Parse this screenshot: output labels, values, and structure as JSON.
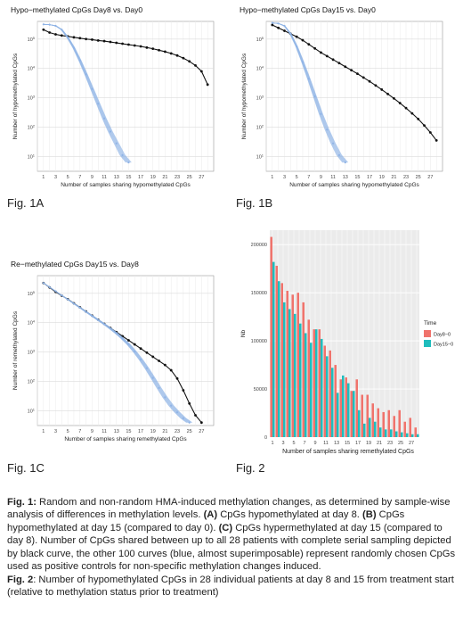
{
  "colors": {
    "black_curve": "#111111",
    "blue_curves": "#8fb3e6",
    "bar_day8": "#f0736c",
    "bar_day15": "#1fbdbd",
    "grid": "#ebebeb",
    "panel_border": "#999999"
  },
  "figure_labels": {
    "fig1a": "Fig. 1A",
    "fig1b": "Fig. 1B",
    "fig1c": "Fig. 1C",
    "fig2": "Fig. 2"
  },
  "caption1": {
    "label": "Fig. 1:",
    "text1": " Random and non-random HMA-induced methylation changes, as determined by sample-wise analysis of differences in methylation levels. ",
    "a_tag": "(A)",
    "a_text": " CpGs hypomethylated at day 8. ",
    "b_tag": "(B)",
    "b_text": " CpGs hypomethylated at day 15 (compared to day 0). ",
    "c_tag": "(C)",
    "c_text": " CpGs hypermethylated at day 15 (compared to day 8). Number of CpGs shared between up to all 28 patients with complete serial sampling depicted by black curve, the other 100 curves (blue, almost superimposable) represent randomly chosen CpGs used as positive controls for non-specific methylation changes induced."
  },
  "caption2": {
    "label": "Fig. 2",
    "text": ": Number of hypomethylated CpGs in 28 individual patients at day 8 and 15 from treatment start (relative to methylation status prior to treatment)"
  },
  "chart_data": [
    {
      "type": "line",
      "title": "Hypo−methylated CpGs Day8 vs. Day0",
      "xlabel": "Number of samples sharing hypomethylated CpGs",
      "ylabel": "Number of hypomethylated CpGs",
      "y_scale": "log",
      "x_ticks": [
        1,
        3,
        5,
        7,
        9,
        11,
        13,
        15,
        17,
        19,
        21,
        23,
        25,
        27
      ],
      "y_tick_labels": [
        "10^1",
        "10^2",
        "10^3",
        "10^4",
        "10^5"
      ],
      "ylim_log10": [
        0.5,
        5.6
      ],
      "xlim": [
        0,
        29
      ],
      "grid": true,
      "series": [
        {
          "color": "black",
          "x": [
            1,
            2,
            3,
            4,
            5,
            6,
            7,
            8,
            9,
            10,
            11,
            12,
            13,
            14,
            15,
            16,
            17,
            18,
            19,
            20,
            21,
            22,
            23,
            24,
            25,
            26,
            27,
            28
          ],
          "log10_y": [
            5.32,
            5.22,
            5.16,
            5.12,
            5.09,
            5.06,
            5.03,
            5.0,
            4.98,
            4.95,
            4.93,
            4.9,
            4.87,
            4.84,
            4.81,
            4.78,
            4.75,
            4.71,
            4.67,
            4.62,
            4.57,
            4.51,
            4.44,
            4.35,
            4.24,
            4.1,
            3.9,
            3.45
          ]
        },
        {
          "color": "blue",
          "x": [
            1,
            2,
            3,
            4,
            5,
            6,
            7,
            8,
            9,
            10,
            11,
            12,
            13,
            14,
            15
          ],
          "log10_y": [
            5.5,
            5.49,
            5.45,
            5.32,
            5.05,
            4.7,
            4.27,
            3.8,
            3.3,
            2.8,
            2.3,
            1.85,
            1.45,
            1.05,
            0.8
          ]
        }
      ]
    },
    {
      "type": "line",
      "title": "Hypo−methylated CpGs Day15 vs. Day0",
      "xlabel": "Number of samples sharing hypomethylated CpGs",
      "ylabel": "Number of hypomethylated CpGs",
      "y_scale": "log",
      "x_ticks": [
        1,
        3,
        5,
        7,
        9,
        11,
        13,
        15,
        17,
        19,
        21,
        23,
        25,
        27
      ],
      "y_tick_labels": [
        "10^1",
        "10^2",
        "10^3",
        "10^4",
        "10^5"
      ],
      "ylim_log10": [
        0.5,
        5.6
      ],
      "xlim": [
        0,
        29
      ],
      "grid": true,
      "series": [
        {
          "color": "black",
          "x": [
            1,
            2,
            3,
            4,
            5,
            6,
            7,
            8,
            9,
            10,
            11,
            12,
            13,
            14,
            15,
            16,
            17,
            18,
            19,
            20,
            21,
            22,
            23,
            24,
            25,
            26,
            27,
            28
          ],
          "log10_y": [
            5.48,
            5.38,
            5.28,
            5.18,
            5.08,
            4.96,
            4.82,
            4.68,
            4.54,
            4.42,
            4.3,
            4.18,
            4.06,
            3.94,
            3.82,
            3.69,
            3.56,
            3.42,
            3.28,
            3.13,
            2.98,
            2.82,
            2.65,
            2.47,
            2.28,
            2.06,
            1.82,
            1.55
          ]
        },
        {
          "color": "blue",
          "x": [
            1,
            2,
            3,
            4,
            5,
            6,
            7,
            8,
            9,
            10,
            11,
            12,
            13
          ],
          "log10_y": [
            5.55,
            5.53,
            5.45,
            5.18,
            4.75,
            4.22,
            3.65,
            3.05,
            2.45,
            1.92,
            1.45,
            1.05,
            0.8
          ]
        }
      ]
    },
    {
      "type": "line",
      "title": "Re−methylated CpGs Day15 vs. Day8",
      "xlabel": "Number of samples sharing remethylated CpGs",
      "ylabel": "Number of remethylated CpGs",
      "y_scale": "log",
      "x_ticks": [
        1,
        3,
        5,
        7,
        9,
        11,
        13,
        15,
        17,
        19,
        21,
        23,
        25,
        27
      ],
      "y_tick_labels": [
        "10^1",
        "10^2",
        "10^3",
        "10^4",
        "10^5"
      ],
      "ylim_log10": [
        0.5,
        5.6
      ],
      "xlim": [
        0,
        29
      ],
      "grid": true,
      "series": [
        {
          "color": "black",
          "x": [
            1,
            2,
            3,
            4,
            5,
            6,
            7,
            8,
            9,
            10,
            11,
            12,
            13,
            14,
            15,
            16,
            17,
            18,
            19,
            20,
            21,
            22,
            23,
            24,
            25,
            26,
            27
          ],
          "log10_y": [
            5.35,
            5.2,
            5.05,
            4.92,
            4.8,
            4.66,
            4.52,
            4.38,
            4.24,
            4.1,
            3.96,
            3.82,
            3.68,
            3.54,
            3.4,
            3.26,
            3.12,
            2.98,
            2.84,
            2.7,
            2.56,
            2.38,
            2.1,
            1.7,
            1.25,
            0.85,
            0.6
          ]
        },
        {
          "color": "blue",
          "x": [
            1,
            2,
            3,
            4,
            5,
            6,
            7,
            8,
            9,
            10,
            11,
            12,
            13,
            14,
            15,
            16,
            17,
            18,
            19,
            20,
            21,
            22,
            23,
            24,
            25
          ],
          "log10_y": [
            5.35,
            5.21,
            5.07,
            4.93,
            4.79,
            4.65,
            4.51,
            4.37,
            4.23,
            4.09,
            3.95,
            3.8,
            3.64,
            3.46,
            3.26,
            3.02,
            2.75,
            2.45,
            2.12,
            1.78,
            1.46,
            1.18,
            0.95,
            0.75,
            0.6
          ]
        }
      ]
    },
    {
      "type": "bar",
      "xlabel": "Number of samples sharing remethylated CpGs",
      "ylabel": "Nb",
      "ylim": [
        0,
        215000
      ],
      "y_ticks": [
        0,
        50000,
        100000,
        150000,
        200000
      ],
      "x_tick_labels": [
        "1",
        "3",
        "5",
        "7",
        "9",
        "11",
        "13",
        "15",
        "17",
        "19",
        "21",
        "23",
        "25",
        "27"
      ],
      "legend_title": "Time",
      "legend_position": "right",
      "grid": true,
      "categories": [
        1,
        2,
        3,
        4,
        5,
        6,
        7,
        8,
        9,
        10,
        11,
        12,
        13,
        14,
        15,
        16,
        17,
        18,
        19,
        20,
        21,
        22,
        23,
        24,
        25,
        26,
        27,
        28
      ],
      "series": [
        {
          "name": "Day8−0",
          "color": "#f0736c",
          "values": [
            208000,
            178000,
            160000,
            152000,
            148000,
            150000,
            140000,
            122000,
            112000,
            112000,
            95000,
            90000,
            75000,
            60000,
            62000,
            48000,
            60000,
            44000,
            44000,
            35000,
            30000,
            26000,
            28000,
            22000,
            28000,
            16000,
            20000,
            10000
          ]
        },
        {
          "name": "Day15−0",
          "color": "#1fbdbd",
          "values": [
            182000,
            162000,
            140000,
            133000,
            128000,
            118000,
            108000,
            98000,
            112000,
            102000,
            84000,
            72000,
            46000,
            64000,
            56000,
            48000,
            28000,
            14000,
            20000,
            16000,
            10000,
            8000,
            8000,
            6000,
            5000,
            4000,
            3000,
            3000
          ]
        }
      ]
    }
  ]
}
